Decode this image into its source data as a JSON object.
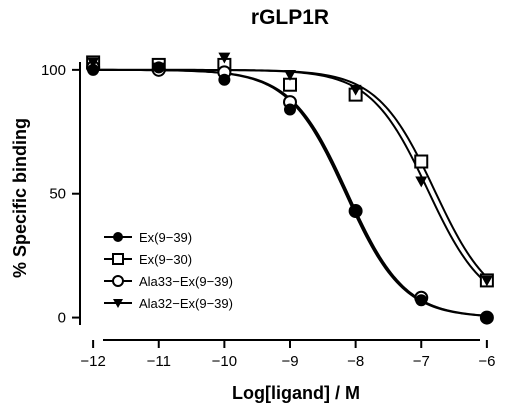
{
  "chart_data": {
    "type": "scatter",
    "title": "rGLP1R",
    "xlabel": "Log[ligand] / M",
    "ylabel": "% Specific binding",
    "xlim": [
      -12.2,
      -5.8
    ],
    "ylim": [
      -3,
      106
    ],
    "xticks": [
      -12,
      -11,
      -10,
      -9,
      -8,
      -7,
      -6
    ],
    "xtick_labels": [
      "−12",
      "−11",
      "−10",
      "−9",
      "−8",
      "−7",
      "−6"
    ],
    "yticks": [
      0,
      50,
      100
    ],
    "ytick_labels": [
      "0",
      "50",
      "100"
    ],
    "grid": false,
    "legend_position": "bottom-left",
    "x": [
      -12,
      -11,
      -10,
      -9,
      -8,
      -7,
      -6
    ],
    "series": [
      {
        "name": "Ex(9−39)",
        "marker": "filled-circle",
        "values": [
          100,
          101,
          96,
          84,
          43,
          7,
          0
        ],
        "fit": {
          "top": 100,
          "bottom": 0,
          "logIC50": -8.15,
          "hill": 1.0
        }
      },
      {
        "name": "Ex(9−30)",
        "marker": "open-square",
        "values": [
          103,
          102,
          102,
          94,
          90,
          63,
          15
        ],
        "fit": {
          "top": 100,
          "bottom": 3,
          "logIC50": -6.8,
          "hill": 1.0
        }
      },
      {
        "name": "Ala33−Ex(9−39)",
        "marker": "open-circle",
        "values": [
          101,
          100,
          99,
          87,
          43,
          8,
          0
        ],
        "fit": {
          "top": 100,
          "bottom": 0,
          "logIC50": -8.12,
          "hill": 1.0
        }
      },
      {
        "name": "Ala32−Ex(9−39)",
        "marker": "filled-triangle-down",
        "values": [
          103,
          101,
          105,
          98,
          92,
          55,
          15
        ],
        "fit": {
          "top": 100,
          "bottom": 3,
          "logIC50": -6.9,
          "hill": 1.0
        }
      }
    ]
  }
}
